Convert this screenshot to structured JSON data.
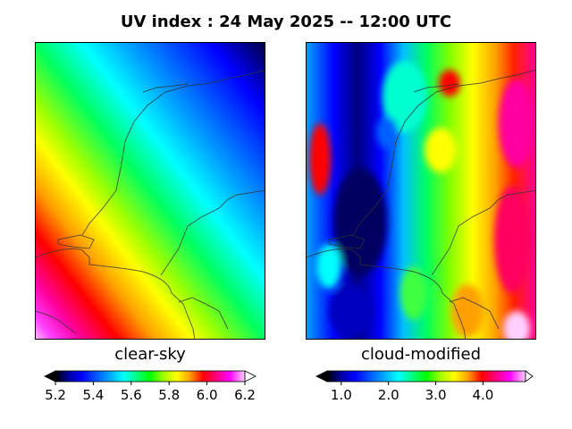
{
  "title": "UV index :  24 May 2025  --  12:00 UTC",
  "panels": [
    {
      "label": "clear-sky",
      "colorbar_ticks": [
        "5.2",
        "5.4",
        "5.6",
        "5.8",
        "6.0",
        "6.2"
      ],
      "colorbar_range": [
        5.2,
        6.2
      ]
    },
    {
      "label": "cloud-modified",
      "colorbar_ticks": [
        "1.0",
        "2.0",
        "3.0",
        "4.0"
      ],
      "colorbar_range": [
        0.7,
        4.9
      ]
    }
  ],
  "colormap": [
    "#000000",
    "#0000a0",
    "#0000ff",
    "#00a0ff",
    "#00ffff",
    "#00ff80",
    "#00ff00",
    "#a0ff00",
    "#ffff00",
    "#ffa000",
    "#ff0000",
    "#ff0080",
    "#ff00ff",
    "#ff80ff",
    "#ffffff"
  ]
}
